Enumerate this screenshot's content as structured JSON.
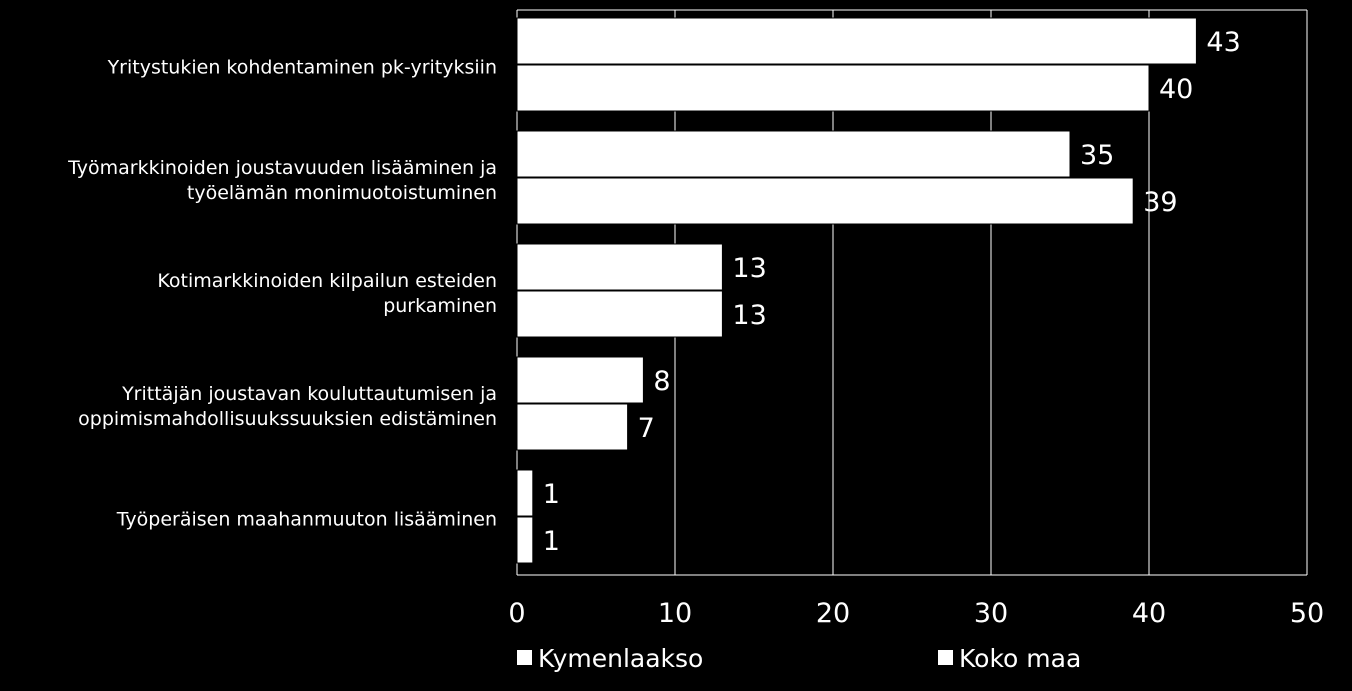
{
  "chart_data": {
    "type": "bar",
    "orientation": "horizontal",
    "categories": [
      "Yritystukien kohdentaminen pk-yrityksiin",
      "Työmarkkinoiden joustavuuden lisääminen ja työelämän monimuotoistuminen",
      "Kotimarkkinoiden kilpailun esteiden purkaminen",
      "Yrittäjän joustavan kouluttautumisen ja oppimismahdollisuukssuuksien edistäminen",
      "Työperäisen maahanmuuton lisääminen"
    ],
    "category_lines": [
      [
        "Yritystukien kohdentaminen pk-yrityksiin"
      ],
      [
        "Työmarkkinoiden joustavuuden lisääminen ja",
        "työelämän monimuotoistuminen"
      ],
      [
        "Kotimarkkinoiden kilpailun esteiden",
        "purkaminen"
      ],
      [
        "Yrittäjän joustavan kouluttautumisen ja",
        "oppimismahdollisuukssuuksien edistäminen"
      ],
      [
        "Työperäisen maahanmuuton lisääminen"
      ]
    ],
    "series": [
      {
        "name": "Kymenlaakso",
        "values": [
          43,
          35,
          13,
          8,
          1
        ],
        "labels": [
          "43",
          "35",
          "13",
          "8",
          "1"
        ]
      },
      {
        "name": "Koko maa",
        "values": [
          40,
          39,
          13,
          7,
          1
        ],
        "labels": [
          "40",
          "39",
          "13",
          "7",
          "1"
        ]
      }
    ],
    "xlim": [
      0,
      50
    ],
    "xticks": [
      "0",
      "10",
      "20",
      "30",
      "40",
      "50"
    ],
    "grid": true,
    "legend_position": "bottom",
    "colors": {
      "background": "#000000",
      "bar_fill": "#ffffff",
      "bar_stroke": "#000000",
      "grid": "#ffffff",
      "text": "#ffffff"
    }
  }
}
